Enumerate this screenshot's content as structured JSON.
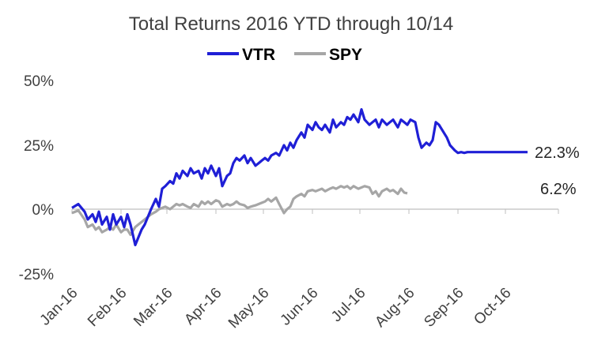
{
  "chart_data": {
    "type": "line",
    "title": "Total Returns 2016 YTD through 10/14",
    "xlabel": "",
    "ylabel": "",
    "ylim": [
      -25,
      50
    ],
    "y_ticks": [
      "50%",
      "25%",
      "0%",
      "-25%"
    ],
    "y_tick_values": [
      50,
      25,
      0,
      -25
    ],
    "x_ticks": [
      "Jan-16",
      "Feb-16",
      "Mar-16",
      "Apr-16",
      "May-16",
      "Jun-16",
      "Jul-16",
      "Aug-16",
      "Sep-16",
      "Oct-16"
    ],
    "grid": false,
    "legend_position": "top-center",
    "end_labels": {
      "VTR": "22.3%",
      "SPY": "6.2%"
    },
    "series": [
      {
        "name": "VTR",
        "color": "#1f1fd6",
        "x": [
          0,
          4,
          8,
          10,
          13,
          15,
          17,
          19,
          22,
          24,
          26,
          28,
          31,
          33,
          35,
          37,
          40,
          42,
          44,
          46,
          48,
          50,
          53,
          55,
          57,
          59,
          62,
          64,
          66,
          68,
          70,
          73,
          75,
          77,
          80,
          82,
          84,
          86,
          88,
          91,
          93,
          95,
          98,
          100,
          102,
          104,
          106,
          109,
          111,
          113,
          116,
          118,
          120,
          122,
          124,
          126,
          129,
          131,
          134,
          136,
          138,
          140,
          142,
          145,
          147,
          149,
          152,
          154,
          156,
          158,
          160,
          163,
          165,
          167,
          170,
          172,
          174,
          176,
          178,
          181,
          183,
          185,
          188,
          190,
          192,
          194,
          196,
          199,
          201,
          203,
          206,
          208,
          210,
          212,
          214,
          217,
          219,
          221,
          224,
          226,
          228,
          230,
          232,
          235,
          237,
          239,
          242,
          244,
          246,
          248,
          250,
          253,
          255,
          257,
          260,
          262,
          264,
          266,
          268,
          271,
          273,
          275,
          278,
          281,
          283,
          286,
          288
        ],
        "values": [
          0.5,
          2,
          -1,
          -4,
          -2,
          -5,
          -1,
          -6,
          -3,
          -8,
          -2,
          -6,
          -3,
          -7,
          -2,
          -6,
          -14,
          -11,
          -8,
          -6,
          -3,
          0,
          4,
          1,
          8,
          9,
          11,
          10,
          14,
          12,
          15,
          13,
          16,
          14,
          15,
          12,
          16,
          14,
          17,
          13,
          16,
          9,
          13,
          14,
          18,
          20,
          19,
          21,
          18,
          20,
          17,
          18,
          19,
          20,
          19,
          21,
          22,
          21,
          25,
          23,
          26,
          24,
          27,
          30,
          28,
          33,
          31,
          34,
          32,
          31,
          33,
          30,
          35,
          32,
          34,
          33,
          36,
          35,
          37,
          34,
          39,
          35,
          33,
          34,
          35,
          32,
          35,
          33,
          34,
          35,
          32,
          35,
          34,
          33,
          35,
          34,
          28,
          24,
          26,
          25,
          27,
          34,
          33,
          30,
          28,
          25,
          23,
          22,
          22.3,
          22,
          22.3,
          22.3,
          22.3,
          22.3,
          22.3,
          22.3,
          22.3,
          22.3,
          22.3,
          22.3,
          22.3,
          22.3,
          22.3,
          22.3,
          22.3,
          22.3,
          22.3
        ]
      },
      {
        "name": "SPY",
        "color": "#a6a6a6",
        "x": [
          0,
          4,
          8,
          10,
          13,
          15,
          17,
          19,
          22,
          24,
          26,
          28,
          31,
          33,
          35,
          37,
          40,
          42,
          44,
          46,
          48,
          50,
          53,
          55,
          57,
          59,
          62,
          64,
          66,
          68,
          70,
          73,
          75,
          77,
          80,
          82,
          84,
          86,
          88,
          91,
          93,
          95,
          98,
          100,
          102,
          104,
          106,
          109,
          111,
          113,
          116,
          118,
          120,
          122,
          124,
          126,
          129,
          131,
          134,
          136,
          138,
          140,
          142,
          145,
          147,
          149,
          152,
          154,
          156,
          158,
          160,
          163,
          165,
          167,
          170,
          172,
          174,
          176,
          178,
          181,
          183,
          185,
          188,
          190,
          192,
          194,
          196,
          199,
          201,
          203,
          206,
          208,
          210,
          212
        ],
        "values": [
          -1.5,
          -0.5,
          -4,
          -7,
          -6,
          -8,
          -7,
          -9,
          -8,
          -7,
          -8,
          -6,
          -9,
          -8,
          -8,
          -10,
          -7,
          -6,
          -5,
          -4,
          -3,
          -2,
          -1,
          0,
          0.5,
          1,
          0,
          1,
          2,
          1.5,
          2,
          1,
          0.5,
          2,
          1,
          3,
          2,
          3,
          2,
          3.5,
          3,
          1,
          2,
          1.5,
          2,
          3,
          2,
          1.5,
          0.5,
          1,
          1.5,
          2,
          2.5,
          3,
          4,
          3,
          4.5,
          2,
          -1.5,
          0,
          1,
          4,
          5,
          6,
          5,
          7,
          7.5,
          7,
          7.5,
          8,
          7,
          8,
          8.5,
          8,
          9,
          8.5,
          9,
          8,
          9,
          8,
          8.5,
          9,
          8.5,
          6,
          7,
          5,
          7,
          8,
          7,
          7.5,
          6,
          8,
          6.5,
          6.2
        ]
      }
    ]
  }
}
